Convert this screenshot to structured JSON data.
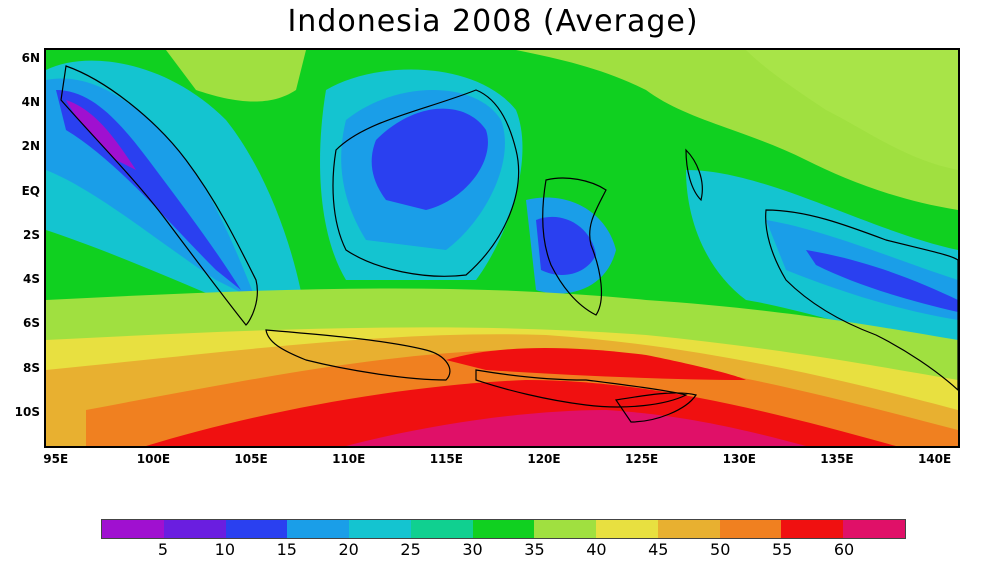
{
  "title": "Indonesia 2008 (Average)",
  "axes": {
    "lat_ticks": [
      {
        "label": "6N",
        "value": 6
      },
      {
        "label": "4N",
        "value": 4
      },
      {
        "label": "2N",
        "value": 2
      },
      {
        "label": "EQ",
        "value": 0
      },
      {
        "label": "2S",
        "value": -2
      },
      {
        "label": "4S",
        "value": -4
      },
      {
        "label": "6S",
        "value": -6
      },
      {
        "label": "8S",
        "value": -8
      },
      {
        "label": "10S",
        "value": -10
      }
    ],
    "lon_ticks": [
      {
        "label": "95E",
        "value": 95
      },
      {
        "label": "100E",
        "value": 100
      },
      {
        "label": "105E",
        "value": 105
      },
      {
        "label": "110E",
        "value": 110
      },
      {
        "label": "115E",
        "value": 115
      },
      {
        "label": "120E",
        "value": 120
      },
      {
        "label": "125E",
        "value": 125
      },
      {
        "label": "130E",
        "value": 130
      },
      {
        "label": "135E",
        "value": 135
      },
      {
        "label": "140E",
        "value": 140
      }
    ],
    "lon_range": [
      94.5,
      141.2
    ],
    "lat_range": [
      -11.5,
      6.4
    ]
  },
  "legend": {
    "colors": [
      "#a010d0",
      "#6a1ee0",
      "#2a40f0",
      "#1a9ee8",
      "#14c4d0",
      "#10d090",
      "#10d020",
      "#a0e040",
      "#e8e040",
      "#e8b030",
      "#f08020",
      "#f01010",
      "#e01068"
    ],
    "labels": [
      "5",
      "10",
      "15",
      "20",
      "25",
      "30",
      "35",
      "40",
      "45",
      "50",
      "55",
      "60"
    ]
  }
}
